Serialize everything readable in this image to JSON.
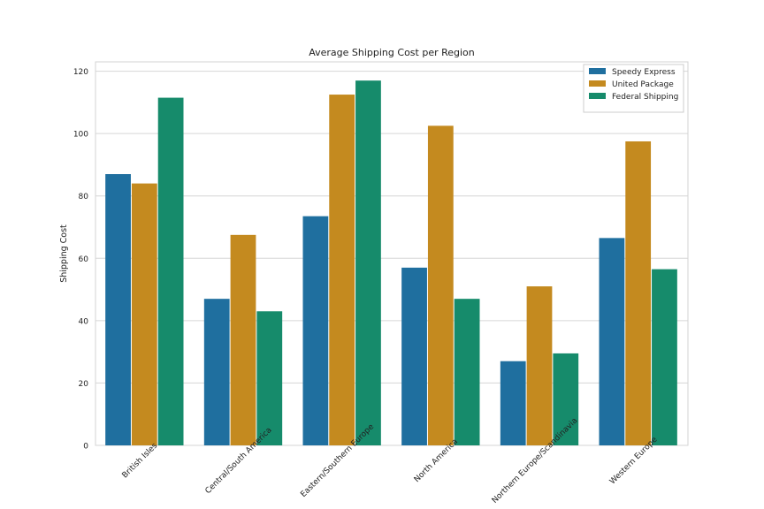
{
  "chart_data": {
    "type": "bar",
    "title": "Average Shipping Cost per Region",
    "xlabel": "",
    "ylabel": "Shipping Cost",
    "ylim": [
      0,
      123
    ],
    "yticks": [
      0,
      20,
      40,
      60,
      80,
      100,
      120
    ],
    "grid": true,
    "legend_position": "top-right",
    "categories": [
      "British Isles",
      "Central/South America",
      "Eastern/Southern Europe",
      "North America",
      "Northern Europe/Scandinavia",
      "Western Europe"
    ],
    "series": [
      {
        "name": "Speedy Express",
        "color": "#1f6f9f",
        "values": [
          87,
          47,
          73.5,
          57,
          27,
          66.5
        ]
      },
      {
        "name": "United Package",
        "color": "#c48a1f",
        "values": [
          84,
          67.5,
          112.5,
          102.5,
          51,
          97.5
        ]
      },
      {
        "name": "Federal Shipping",
        "color": "#168b6b",
        "values": [
          111.5,
          43,
          117,
          47,
          29.5,
          56.5
        ]
      }
    ]
  }
}
